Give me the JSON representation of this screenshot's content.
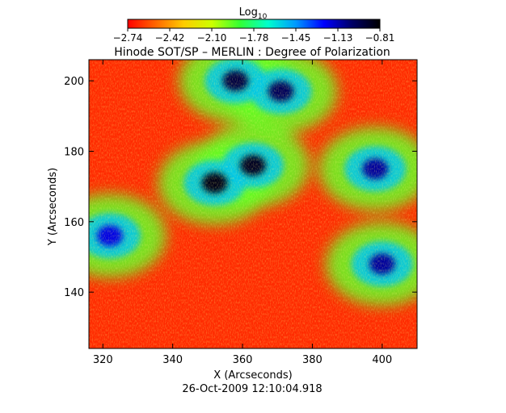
{
  "chart_data": {
    "type": "heatmap",
    "title": "Hinode SOT/SP – MERLIN : Degree of Polarization",
    "colorbar": {
      "label_base": "Log",
      "label_sub": "10",
      "ticks": [
        "−2.74",
        "−2.42",
        "−2.10",
        "−1.78",
        "−1.45",
        "−1.13",
        "−0.81"
      ],
      "range": [
        -2.74,
        -0.81
      ],
      "colors": [
        "#ff0000",
        "#ff6600",
        "#ffcc00",
        "#ccff00",
        "#33ff33",
        "#00ffcc",
        "#0099ff",
        "#0000ff",
        "#000066",
        "#000000"
      ]
    },
    "xlabel": "X (Arcseconds)",
    "ylabel": "Y (Arcseconds)",
    "xlim": [
      316,
      410
    ],
    "ylim": [
      124,
      206
    ],
    "x_ticks": [
      320,
      340,
      360,
      380,
      400
    ],
    "y_ticks": [
      140,
      160,
      180,
      200
    ],
    "regions": [
      {
        "name": "strong-pore-1",
        "x": 352,
        "y": 171,
        "level": -0.85
      },
      {
        "name": "strong-pore-2",
        "x": 363,
        "y": 176,
        "level": -0.88
      },
      {
        "name": "strong-pore-3",
        "x": 358,
        "y": 200,
        "level": -0.95
      },
      {
        "name": "strong-pore-4",
        "x": 371,
        "y": 197,
        "level": -1.0
      },
      {
        "name": "filament-east",
        "x": 398,
        "y": 175,
        "level": -1.1
      },
      {
        "name": "patch-west",
        "x": 322,
        "y": 156,
        "level": -1.2
      },
      {
        "name": "patch-southeast",
        "x": 400,
        "y": 148,
        "level": -1.1
      }
    ],
    "grid": false,
    "legend": "top-center colorbar"
  },
  "footer": {
    "timestamp": "26-Oct-2009 12:10:04.918"
  }
}
